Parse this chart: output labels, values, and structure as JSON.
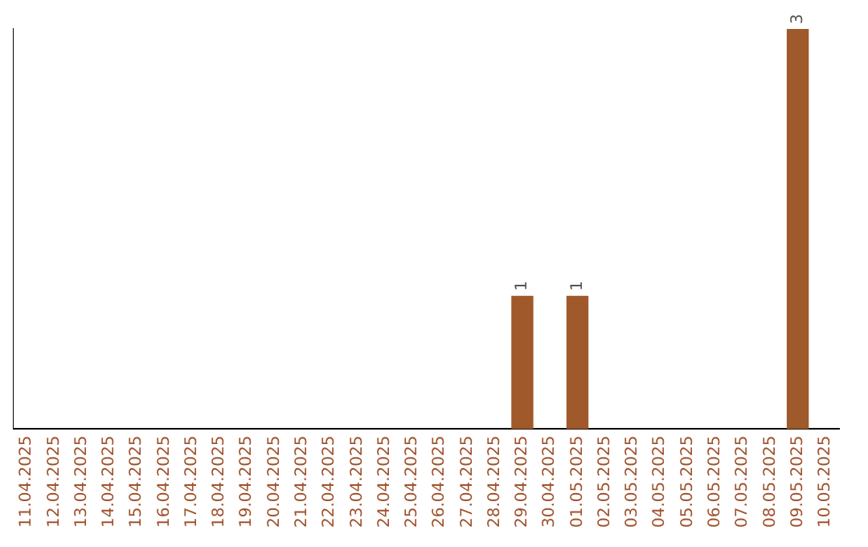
{
  "chart_data": {
    "type": "bar",
    "categories": [
      "11.04.2025",
      "12.04.2025",
      "13.04.2025",
      "14.04.2025",
      "15.04.2025",
      "16.04.2025",
      "17.04.2025",
      "18.04.2025",
      "19.04.2025",
      "20.04.2025",
      "21.04.2025",
      "22.04.2025",
      "23.04.2025",
      "24.04.2025",
      "25.04.2025",
      "26.04.2025",
      "27.04.2025",
      "28.04.2025",
      "29.04.2025",
      "30.04.2025",
      "01.05.2025",
      "02.05.2025",
      "03.05.2025",
      "04.05.2025",
      "05.05.2025",
      "06.05.2025",
      "07.05.2025",
      "08.05.2025",
      "09.05.2025",
      "10.05.2025"
    ],
    "values": [
      null,
      null,
      null,
      null,
      null,
      null,
      null,
      null,
      null,
      null,
      null,
      null,
      null,
      null,
      null,
      null,
      null,
      null,
      1,
      null,
      1,
      null,
      null,
      null,
      null,
      null,
      null,
      null,
      3,
      null
    ],
    "data_labels": true,
    "color": "#a0592a",
    "grid": false,
    "legend": false,
    "tick_labels": "x"
  }
}
